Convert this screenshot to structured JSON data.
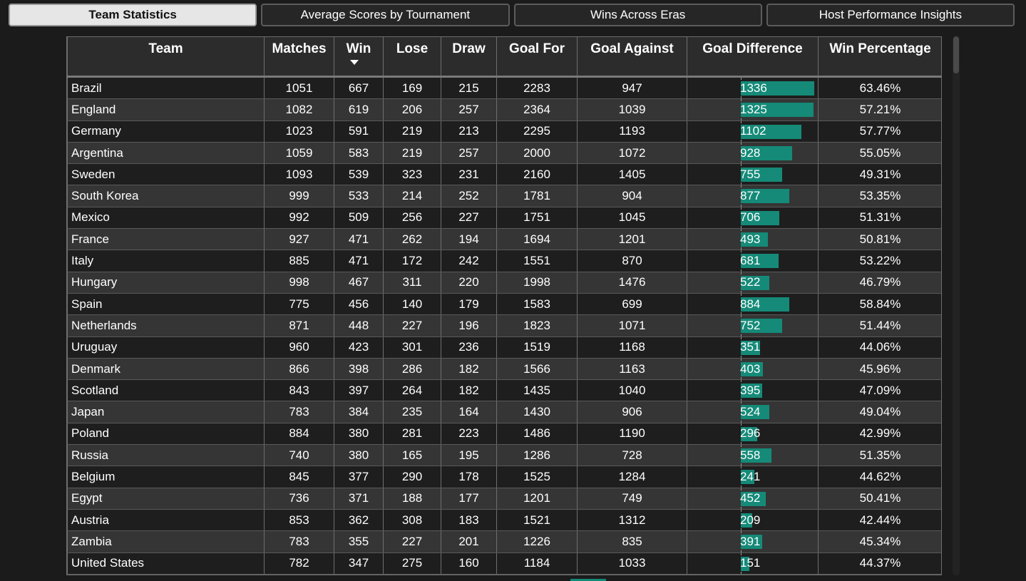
{
  "tabs": [
    {
      "label": "Team Statistics",
      "active": true
    },
    {
      "label": "Average Scores by Tournament",
      "active": false
    },
    {
      "label": "Wins Across Eras",
      "active": false
    },
    {
      "label": "Host Performance Insights",
      "active": false
    }
  ],
  "table": {
    "columns": [
      "Team",
      "Matches",
      "Win",
      "Lose",
      "Draw",
      "Goal For",
      "Goal Against",
      "Goal Difference",
      "Win Percentage"
    ],
    "sorted_column": "Win",
    "sort_direction": "descending",
    "bar_color": "#158a78",
    "goal_difference_max": 1336,
    "rows": [
      {
        "team": "Brazil",
        "matches": "1051",
        "win": "667",
        "lose": "169",
        "draw": "215",
        "goal_for": "2283",
        "goal_against": "947",
        "goal_difference": "1336",
        "win_percentage": "63.46%"
      },
      {
        "team": "England",
        "matches": "1082",
        "win": "619",
        "lose": "206",
        "draw": "257",
        "goal_for": "2364",
        "goal_against": "1039",
        "goal_difference": "1325",
        "win_percentage": "57.21%"
      },
      {
        "team": "Germany",
        "matches": "1023",
        "win": "591",
        "lose": "219",
        "draw": "213",
        "goal_for": "2295",
        "goal_against": "1193",
        "goal_difference": "1102",
        "win_percentage": "57.77%"
      },
      {
        "team": "Argentina",
        "matches": "1059",
        "win": "583",
        "lose": "219",
        "draw": "257",
        "goal_for": "2000",
        "goal_against": "1072",
        "goal_difference": "928",
        "win_percentage": "55.05%"
      },
      {
        "team": "Sweden",
        "matches": "1093",
        "win": "539",
        "lose": "323",
        "draw": "231",
        "goal_for": "2160",
        "goal_against": "1405",
        "goal_difference": "755",
        "win_percentage": "49.31%"
      },
      {
        "team": "South Korea",
        "matches": "999",
        "win": "533",
        "lose": "214",
        "draw": "252",
        "goal_for": "1781",
        "goal_against": "904",
        "goal_difference": "877",
        "win_percentage": "53.35%"
      },
      {
        "team": "Mexico",
        "matches": "992",
        "win": "509",
        "lose": "256",
        "draw": "227",
        "goal_for": "1751",
        "goal_against": "1045",
        "goal_difference": "706",
        "win_percentage": "51.31%"
      },
      {
        "team": "France",
        "matches": "927",
        "win": "471",
        "lose": "262",
        "draw": "194",
        "goal_for": "1694",
        "goal_against": "1201",
        "goal_difference": "493",
        "win_percentage": "50.81%"
      },
      {
        "team": "Italy",
        "matches": "885",
        "win": "471",
        "lose": "172",
        "draw": "242",
        "goal_for": "1551",
        "goal_against": "870",
        "goal_difference": "681",
        "win_percentage": "53.22%"
      },
      {
        "team": "Hungary",
        "matches": "998",
        "win": "467",
        "lose": "311",
        "draw": "220",
        "goal_for": "1998",
        "goal_against": "1476",
        "goal_difference": "522",
        "win_percentage": "46.79%"
      },
      {
        "team": "Spain",
        "matches": "775",
        "win": "456",
        "lose": "140",
        "draw": "179",
        "goal_for": "1583",
        "goal_against": "699",
        "goal_difference": "884",
        "win_percentage": "58.84%"
      },
      {
        "team": "Netherlands",
        "matches": "871",
        "win": "448",
        "lose": "227",
        "draw": "196",
        "goal_for": "1823",
        "goal_against": "1071",
        "goal_difference": "752",
        "win_percentage": "51.44%"
      },
      {
        "team": "Uruguay",
        "matches": "960",
        "win": "423",
        "lose": "301",
        "draw": "236",
        "goal_for": "1519",
        "goal_against": "1168",
        "goal_difference": "351",
        "win_percentage": "44.06%"
      },
      {
        "team": "Denmark",
        "matches": "866",
        "win": "398",
        "lose": "286",
        "draw": "182",
        "goal_for": "1566",
        "goal_against": "1163",
        "goal_difference": "403",
        "win_percentage": "45.96%"
      },
      {
        "team": "Scotland",
        "matches": "843",
        "win": "397",
        "lose": "264",
        "draw": "182",
        "goal_for": "1435",
        "goal_against": "1040",
        "goal_difference": "395",
        "win_percentage": "47.09%"
      },
      {
        "team": "Japan",
        "matches": "783",
        "win": "384",
        "lose": "235",
        "draw": "164",
        "goal_for": "1430",
        "goal_against": "906",
        "goal_difference": "524",
        "win_percentage": "49.04%"
      },
      {
        "team": "Poland",
        "matches": "884",
        "win": "380",
        "lose": "281",
        "draw": "223",
        "goal_for": "1486",
        "goal_against": "1190",
        "goal_difference": "296",
        "win_percentage": "42.99%"
      },
      {
        "team": "Russia",
        "matches": "740",
        "win": "380",
        "lose": "165",
        "draw": "195",
        "goal_for": "1286",
        "goal_against": "728",
        "goal_difference": "558",
        "win_percentage": "51.35%"
      },
      {
        "team": "Belgium",
        "matches": "845",
        "win": "377",
        "lose": "290",
        "draw": "178",
        "goal_for": "1525",
        "goal_against": "1284",
        "goal_difference": "241",
        "win_percentage": "44.62%"
      },
      {
        "team": "Egypt",
        "matches": "736",
        "win": "371",
        "lose": "188",
        "draw": "177",
        "goal_for": "1201",
        "goal_against": "749",
        "goal_difference": "452",
        "win_percentage": "50.41%"
      },
      {
        "team": "Austria",
        "matches": "853",
        "win": "362",
        "lose": "308",
        "draw": "183",
        "goal_for": "1521",
        "goal_against": "1312",
        "goal_difference": "209",
        "win_percentage": "42.44%"
      },
      {
        "team": "Zambia",
        "matches": "783",
        "win": "355",
        "lose": "227",
        "draw": "201",
        "goal_for": "1226",
        "goal_against": "835",
        "goal_difference": "391",
        "win_percentage": "45.34%"
      },
      {
        "team": "United States",
        "matches": "782",
        "win": "347",
        "lose": "275",
        "draw": "160",
        "goal_for": "1184",
        "goal_against": "1033",
        "goal_difference": "151",
        "win_percentage": "44.37%"
      }
    ]
  }
}
